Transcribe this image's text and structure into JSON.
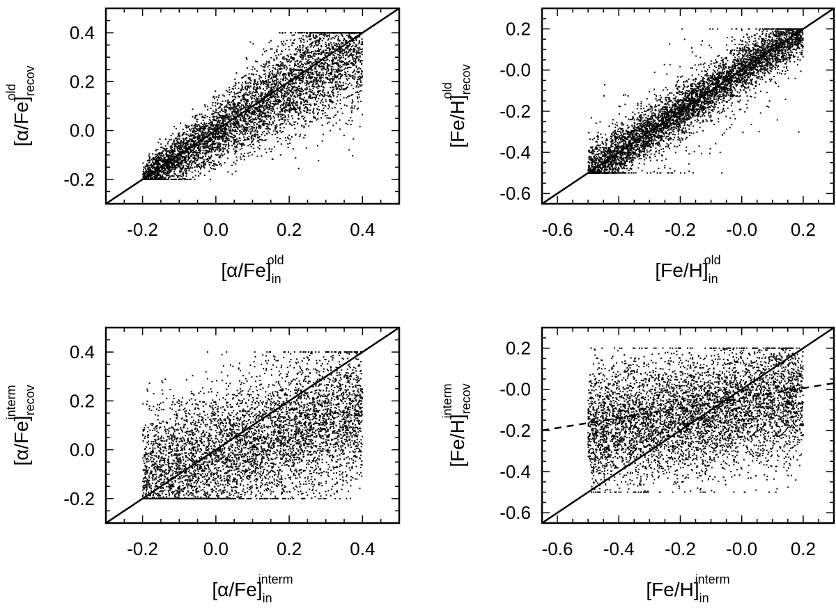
{
  "chart_data": [
    {
      "type": "scatter",
      "panel": "top-left",
      "xlabel": {
        "main": "[α/Fe]",
        "sub": "in",
        "sup": "old"
      },
      "ylabel": {
        "main": "[α/Fe]",
        "sub": "recov",
        "sup": "old"
      },
      "xlim": [
        -0.3,
        0.5
      ],
      "ylim": [
        -0.3,
        0.5
      ],
      "xticks": [
        -0.2,
        0.0,
        0.2,
        0.4
      ],
      "yticks": [
        -0.2,
        0.0,
        0.2,
        0.4
      ],
      "xtick_labels": [
        "-0.2",
        "0.0",
        "0.2",
        "0.4"
      ],
      "ytick_labels": [
        "-0.2",
        "0.0",
        "0.2",
        "0.4"
      ],
      "minor_step": 0.05,
      "identity_line": true,
      "points": {
        "n": 5200,
        "x_range": [
          -0.2,
          0.4
        ],
        "y_range": [
          -0.2,
          0.4
        ],
        "correlation": "strong, scatter increases with x"
      }
    },
    {
      "type": "scatter",
      "panel": "top-right",
      "xlabel": {
        "main": "[Fe/H]",
        "sub": "in",
        "sup": "old"
      },
      "ylabel": {
        "main": "[Fe/H]",
        "sub": "recov",
        "sup": "old"
      },
      "xlim": [
        -0.65,
        0.3
      ],
      "ylim": [
        -0.65,
        0.3
      ],
      "xticks": [
        -0.6,
        -0.4,
        -0.2,
        0.0,
        0.2
      ],
      "yticks": [
        -0.6,
        -0.4,
        -0.2,
        0.0,
        0.2
      ],
      "xtick_labels": [
        "-0.6",
        "-0.4",
        "-0.2",
        "-0.0",
        "0.2"
      ],
      "ytick_labels": [
        "-0.6",
        "-0.4",
        "-0.2",
        "-0.0",
        "0.2"
      ],
      "minor_step": 0.05,
      "identity_line": true,
      "points": {
        "n": 5200,
        "x_range": [
          -0.5,
          0.2
        ],
        "y_range": [
          -0.5,
          0.2
        ],
        "correlation": "strong, tight along 1:1"
      }
    },
    {
      "type": "scatter",
      "panel": "bottom-left",
      "xlabel": {
        "main": "[α/Fe]",
        "sub": "in",
        "sup": "interm"
      },
      "ylabel": {
        "main": "[α/Fe]",
        "sub": "recov",
        "sup": "interm"
      },
      "xlim": [
        -0.3,
        0.5
      ],
      "ylim": [
        -0.3,
        0.5
      ],
      "xticks": [
        -0.2,
        0.0,
        0.2,
        0.4
      ],
      "yticks": [
        -0.2,
        0.0,
        0.2,
        0.4
      ],
      "xtick_labels": [
        "-0.2",
        "0.0",
        "0.2",
        "0.4"
      ],
      "ytick_labels": [
        "-0.2",
        "0.0",
        "0.2",
        "0.4"
      ],
      "minor_step": 0.05,
      "identity_line": true,
      "points": {
        "n": 5200,
        "x_range": [
          -0.2,
          0.4
        ],
        "y_range": [
          -0.2,
          0.4
        ],
        "correlation": "weak, broad scatter"
      }
    },
    {
      "type": "scatter",
      "panel": "bottom-right",
      "xlabel": {
        "main": "[Fe/H]",
        "sub": "in",
        "sup": "interm"
      },
      "ylabel": {
        "main": "[Fe/H]",
        "sub": "recov",
        "sup": "interm"
      },
      "xlim": [
        -0.65,
        0.3
      ],
      "ylim": [
        -0.65,
        0.3
      ],
      "xticks": [
        -0.6,
        -0.4,
        -0.2,
        0.0,
        0.2
      ],
      "yticks": [
        -0.6,
        -0.4,
        -0.2,
        0.0,
        0.2
      ],
      "xtick_labels": [
        "-0.6",
        "-0.4",
        "-0.2",
        "-0.0",
        "0.2"
      ],
      "ytick_labels": [
        "-0.6",
        "-0.4",
        "-0.2",
        "-0.0",
        "0.2"
      ],
      "minor_step": 0.05,
      "identity_line": true,
      "fit_line": {
        "style": "dashed",
        "points": [
          [
            -0.65,
            -0.2
          ],
          [
            0.3,
            0.03
          ]
        ]
      },
      "points": {
        "n": 5200,
        "x_range": [
          -0.5,
          0.2
        ],
        "y_range": [
          -0.5,
          0.2
        ],
        "correlation": "weak, flattened slope"
      }
    }
  ]
}
